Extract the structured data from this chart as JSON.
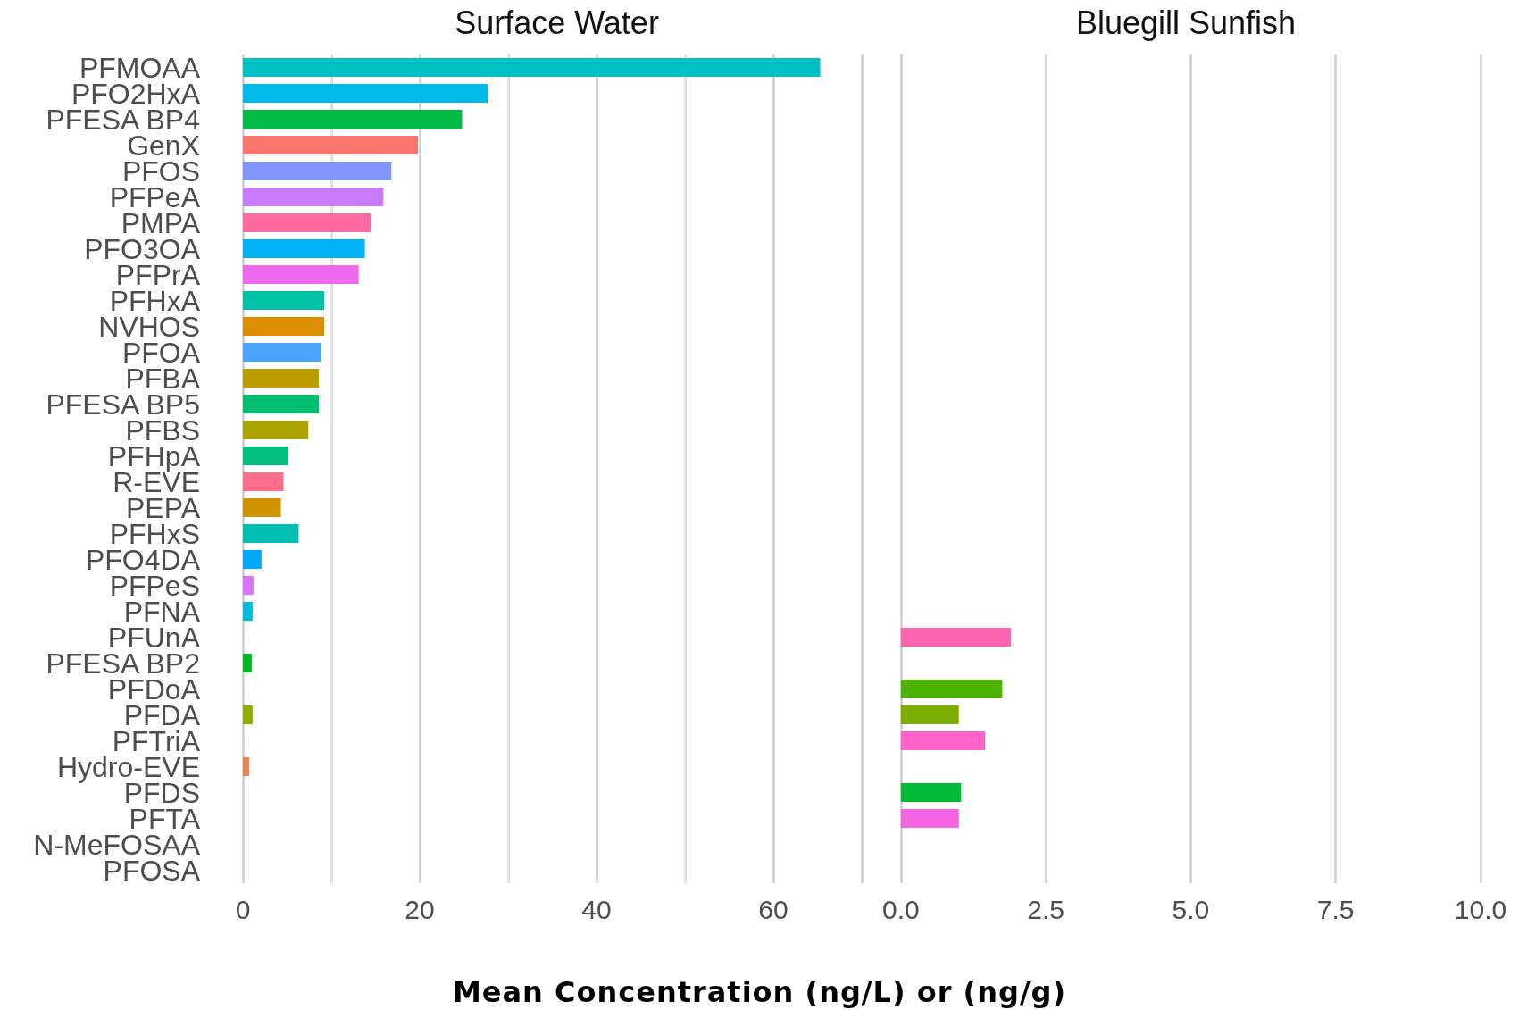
{
  "chart_data": [
    {
      "type": "bar",
      "orientation": "horizontal",
      "title": "Surface Water",
      "xlabel": "Mean Concentration (ng/L) or (ng/g)",
      "categories": [
        "PFMOAA",
        "PFO2HxA",
        "PFESA BP4",
        "GenX",
        "PFOS",
        "PFPeA",
        "PMPA",
        "PFO3OA",
        "PFPrA",
        "PFHxA",
        "NVHOS",
        "PFOA",
        "PFBA",
        "PFESA BP5",
        "PFBS",
        "PFHpA",
        "R-EVE",
        "PEPA",
        "PFHxS",
        "PFO4DA",
        "PFPeS",
        "PFNA",
        "PFUnA",
        "PFESA BP2",
        "PFDoA",
        "PFDA",
        "PFTriA",
        "Hydro-EVE",
        "PFDS",
        "PFTA",
        "N-MeFOSAA",
        "PFOSA"
      ],
      "values": [
        65.3,
        27.7,
        24.8,
        19.8,
        16.8,
        15.9,
        14.5,
        13.8,
        13.1,
        9.2,
        9.2,
        8.9,
        8.6,
        8.6,
        7.4,
        5.1,
        4.6,
        4.3,
        6.3,
        2.1,
        1.2,
        1.1,
        null,
        1.0,
        null,
        1.1,
        null,
        0.7,
        null,
        null,
        null,
        null
      ],
      "colors": [
        "#00c0c4",
        "#00b9e6",
        "#00ba48",
        "#f8766d",
        "#8494ff",
        "#c77cff",
        "#ff68a1",
        "#00b3f5",
        "#ed68ed",
        "#00c1a3",
        "#de8c00",
        "#4ba5ff",
        "#bb9d00",
        "#00be70",
        "#aca300",
        "#00bf7d",
        "#fe6e8a",
        "#d09400",
        "#00bfb2",
        "#00a8ff",
        "#db72fb",
        "#00bcd8",
        "#ff64b0",
        "#00b81f",
        "#4cb400",
        "#8fad00",
        "#ff61c9",
        "#f07f4d",
        "#00ba38",
        "#f564e3",
        "#aaaaaa",
        "#aaaaaa"
      ],
      "xlim": [
        0,
        70
      ],
      "xticks": [
        0,
        {
          "value": 10,
          "label": null
        },
        20,
        {
          "value": 30,
          "label": null
        },
        40,
        {
          "value": 50,
          "label": null
        },
        60,
        {
          "value": 70,
          "label": null
        }
      ],
      "grid": "x"
    },
    {
      "type": "bar",
      "orientation": "horizontal",
      "title": "Bluegill Sunfish",
      "categories": [
        null,
        null,
        null,
        null,
        null,
        null,
        null,
        null,
        null,
        null,
        null,
        null,
        null,
        null,
        null,
        null,
        null,
        null,
        null,
        null,
        null,
        null,
        null,
        null,
        null,
        null,
        null,
        null,
        null,
        null,
        null,
        null
      ],
      "values": [
        null,
        null,
        null,
        null,
        null,
        null,
        null,
        null,
        null,
        null,
        null,
        null,
        null,
        null,
        null,
        null,
        null,
        null,
        null,
        null,
        null,
        null,
        1.9,
        null,
        1.75,
        1.0,
        1.45,
        null,
        1.04,
        1.0,
        null,
        null
      ],
      "colors": [
        "#aaaaaa",
        "#aaaaaa",
        "#aaaaaa",
        "#aaaaaa",
        "#aaaaaa",
        "#aaaaaa",
        "#aaaaaa",
        "#aaaaaa",
        "#aaaaaa",
        "#aaaaaa",
        "#aaaaaa",
        "#aaaaaa",
        "#aaaaaa",
        "#aaaaaa",
        "#aaaaaa",
        "#aaaaaa",
        "#aaaaaa",
        "#aaaaaa",
        "#aaaaaa",
        "#aaaaaa",
        "#aaaaaa",
        "#aaaaaa",
        "#ff64b0",
        "#aaaaaa",
        "#4cb400",
        "#7cae00",
        "#ff61c9",
        "#aaaaaa",
        "#00ba38",
        "#f564e3",
        "#aaaaaa",
        "#aaaaaa"
      ],
      "xlim": [
        0,
        10
      ],
      "xticks": [
        {
          "value": 0,
          "label": "0.0"
        },
        {
          "value": 2.5,
          "label": "2.5"
        },
        {
          "value": 5,
          "label": "5.0"
        },
        {
          "value": 7.5,
          "label": "7.5"
        },
        {
          "value": 10,
          "label": "10.0"
        }
      ],
      "grid": "x",
      "tick_labels": "x"
    }
  ]
}
